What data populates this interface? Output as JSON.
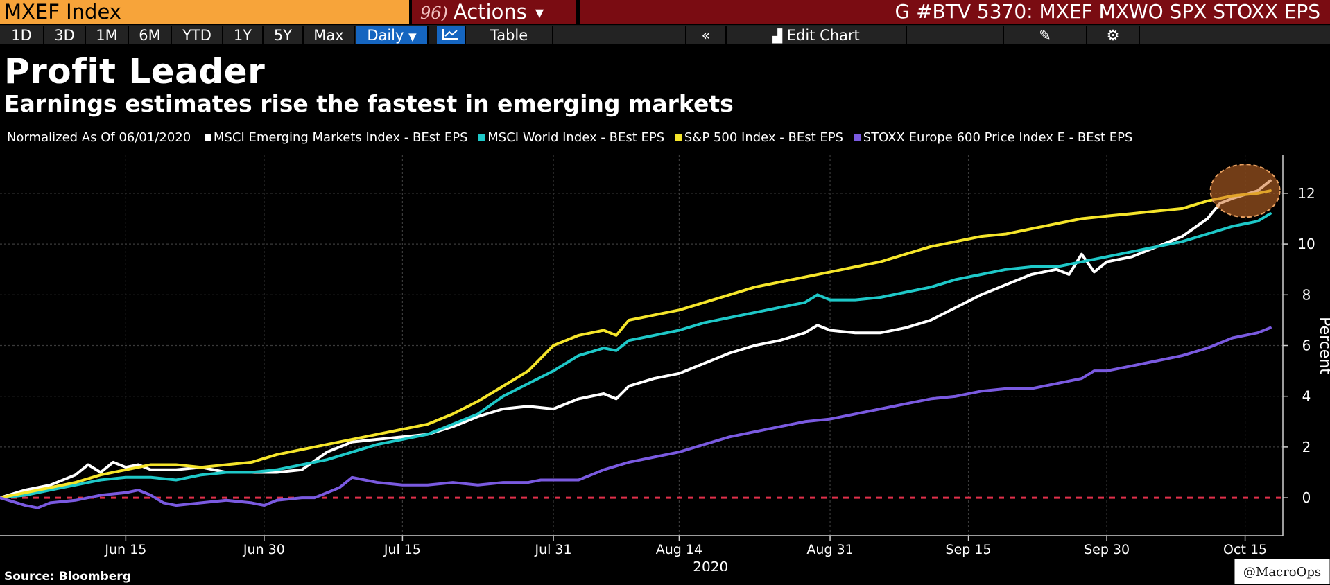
{
  "header": {
    "ticker": "MXEF Index",
    "actions_num": "96)",
    "actions_label": "Actions",
    "command": "G #BTV 5370: MXEF MXWO SPX STOXX EPS"
  },
  "toolbar": {
    "ranges": [
      "1D",
      "3D",
      "1M",
      "6M",
      "YTD",
      "1Y",
      "5Y",
      "Max"
    ],
    "frequency": "Daily",
    "table_label": "Table",
    "edit_chart_label": "Edit Chart"
  },
  "headline": {
    "title": "Profit Leader",
    "subtitle": "Earnings estimates rise the fastest in emerging markets"
  },
  "footer": {
    "source": "Source: Bloomberg",
    "watermark": "@MacroOps"
  },
  "colors": {
    "background": "#000000",
    "em": "#ffffff",
    "world": "#1ec8c8",
    "spx": "#f5e52a",
    "stoxx": "#7a5ae0",
    "zero_line": "#e0304a",
    "highlight": "#d0702a"
  },
  "chart_data": {
    "type": "line",
    "title": "Profit Leader",
    "subtitle": "Earnings estimates rise the fastest in emerging markets",
    "normalization_label": "Normalized As Of 06/01/2020",
    "ylabel": "Percent",
    "ylim": [
      -1.5,
      13.5
    ],
    "yticks": [
      0,
      2,
      4,
      6,
      8,
      10,
      12
    ],
    "xlabel": "2020",
    "x_ticks": [
      {
        "label": "Jun 15",
        "day": 10
      },
      {
        "label": "Jun 30",
        "day": 21
      },
      {
        "label": "Jul 15",
        "day": 32
      },
      {
        "label": "Jul 31",
        "day": 44
      },
      {
        "label": "Aug 14",
        "day": 54
      },
      {
        "label": "Aug 31",
        "day": 66
      },
      {
        "label": "Sep 15",
        "day": 77
      },
      {
        "label": "Sep 30",
        "day": 88
      },
      {
        "label": "Oct 15",
        "day": 99
      }
    ],
    "x_range": [
      0,
      102
    ],
    "legend_position": "top",
    "zero_line": true,
    "highlight_annotation": {
      "day": 99,
      "value": 12.1
    },
    "series": [
      {
        "name": "MSCI Emerging Markets Index - BEst EPS",
        "color": "#ffffff",
        "points": [
          [
            0,
            0
          ],
          [
            2,
            0.3
          ],
          [
            4,
            0.5
          ],
          [
            6,
            0.9
          ],
          [
            7,
            1.3
          ],
          [
            8,
            1.0
          ],
          [
            9,
            1.4
          ],
          [
            10,
            1.2
          ],
          [
            11,
            1.3
          ],
          [
            12,
            1.1
          ],
          [
            14,
            1.1
          ],
          [
            16,
            1.2
          ],
          [
            18,
            1.0
          ],
          [
            20,
            1.0
          ],
          [
            22,
            1.0
          ],
          [
            24,
            1.1
          ],
          [
            26,
            1.8
          ],
          [
            28,
            2.2
          ],
          [
            30,
            2.3
          ],
          [
            32,
            2.4
          ],
          [
            34,
            2.5
          ],
          [
            36,
            2.8
          ],
          [
            38,
            3.2
          ],
          [
            40,
            3.5
          ],
          [
            42,
            3.6
          ],
          [
            44,
            3.5
          ],
          [
            46,
            3.9
          ],
          [
            48,
            4.1
          ],
          [
            49,
            3.9
          ],
          [
            50,
            4.4
          ],
          [
            52,
            4.7
          ],
          [
            54,
            4.9
          ],
          [
            56,
            5.3
          ],
          [
            58,
            5.7
          ],
          [
            60,
            6.0
          ],
          [
            62,
            6.2
          ],
          [
            64,
            6.5
          ],
          [
            65,
            6.8
          ],
          [
            66,
            6.6
          ],
          [
            68,
            6.5
          ],
          [
            70,
            6.5
          ],
          [
            72,
            6.7
          ],
          [
            74,
            7.0
          ],
          [
            76,
            7.5
          ],
          [
            78,
            8.0
          ],
          [
            80,
            8.4
          ],
          [
            82,
            8.8
          ],
          [
            84,
            9.0
          ],
          [
            85,
            8.8
          ],
          [
            86,
            9.6
          ],
          [
            87,
            8.9
          ],
          [
            88,
            9.3
          ],
          [
            90,
            9.5
          ],
          [
            92,
            9.9
          ],
          [
            94,
            10.3
          ],
          [
            96,
            11.0
          ],
          [
            97,
            11.6
          ],
          [
            98,
            11.8
          ],
          [
            100,
            12.1
          ],
          [
            101,
            12.5
          ]
        ]
      },
      {
        "name": "MSCI World Index - BEst EPS",
        "color": "#1ec8c8",
        "points": [
          [
            0,
            0
          ],
          [
            2,
            0.1
          ],
          [
            4,
            0.3
          ],
          [
            6,
            0.5
          ],
          [
            8,
            0.7
          ],
          [
            10,
            0.8
          ],
          [
            12,
            0.8
          ],
          [
            14,
            0.7
          ],
          [
            16,
            0.9
          ],
          [
            18,
            1.0
          ],
          [
            20,
            1.0
          ],
          [
            22,
            1.1
          ],
          [
            24,
            1.3
          ],
          [
            26,
            1.5
          ],
          [
            28,
            1.8
          ],
          [
            30,
            2.1
          ],
          [
            32,
            2.3
          ],
          [
            34,
            2.5
          ],
          [
            36,
            2.9
          ],
          [
            38,
            3.3
          ],
          [
            40,
            4.0
          ],
          [
            42,
            4.5
          ],
          [
            44,
            5.0
          ],
          [
            46,
            5.6
          ],
          [
            48,
            5.9
          ],
          [
            49,
            5.8
          ],
          [
            50,
            6.2
          ],
          [
            52,
            6.4
          ],
          [
            54,
            6.6
          ],
          [
            56,
            6.9
          ],
          [
            58,
            7.1
          ],
          [
            60,
            7.3
          ],
          [
            62,
            7.5
          ],
          [
            64,
            7.7
          ],
          [
            65,
            8.0
          ],
          [
            66,
            7.8
          ],
          [
            68,
            7.8
          ],
          [
            70,
            7.9
          ],
          [
            72,
            8.1
          ],
          [
            74,
            8.3
          ],
          [
            76,
            8.6
          ],
          [
            78,
            8.8
          ],
          [
            80,
            9.0
          ],
          [
            82,
            9.1
          ],
          [
            84,
            9.1
          ],
          [
            86,
            9.3
          ],
          [
            88,
            9.5
          ],
          [
            90,
            9.7
          ],
          [
            92,
            9.9
          ],
          [
            94,
            10.1
          ],
          [
            96,
            10.4
          ],
          [
            98,
            10.7
          ],
          [
            100,
            10.9
          ],
          [
            101,
            11.2
          ]
        ]
      },
      {
        "name": "S&P 500 Index - BEst EPS",
        "color": "#f5e52a",
        "points": [
          [
            0,
            0
          ],
          [
            2,
            0.2
          ],
          [
            4,
            0.4
          ],
          [
            6,
            0.6
          ],
          [
            8,
            0.9
          ],
          [
            10,
            1.1
          ],
          [
            12,
            1.3
          ],
          [
            14,
            1.3
          ],
          [
            16,
            1.2
          ],
          [
            18,
            1.3
          ],
          [
            20,
            1.4
          ],
          [
            22,
            1.7
          ],
          [
            24,
            1.9
          ],
          [
            26,
            2.1
          ],
          [
            28,
            2.3
          ],
          [
            30,
            2.5
          ],
          [
            32,
            2.7
          ],
          [
            34,
            2.9
          ],
          [
            36,
            3.3
          ],
          [
            38,
            3.8
          ],
          [
            40,
            4.4
          ],
          [
            42,
            5.0
          ],
          [
            44,
            6.0
          ],
          [
            46,
            6.4
          ],
          [
            48,
            6.6
          ],
          [
            49,
            6.4
          ],
          [
            50,
            7.0
          ],
          [
            52,
            7.2
          ],
          [
            54,
            7.4
          ],
          [
            56,
            7.7
          ],
          [
            58,
            8.0
          ],
          [
            60,
            8.3
          ],
          [
            62,
            8.5
          ],
          [
            64,
            8.7
          ],
          [
            66,
            8.9
          ],
          [
            68,
            9.1
          ],
          [
            70,
            9.3
          ],
          [
            72,
            9.6
          ],
          [
            74,
            9.9
          ],
          [
            76,
            10.1
          ],
          [
            78,
            10.3
          ],
          [
            80,
            10.4
          ],
          [
            82,
            10.6
          ],
          [
            84,
            10.8
          ],
          [
            86,
            11.0
          ],
          [
            88,
            11.1
          ],
          [
            90,
            11.2
          ],
          [
            92,
            11.3
          ],
          [
            94,
            11.4
          ],
          [
            96,
            11.7
          ],
          [
            98,
            11.9
          ],
          [
            100,
            12.0
          ],
          [
            101,
            12.1
          ]
        ]
      },
      {
        "name": "STOXX Europe 600 Price Index E - BEst EPS",
        "color": "#7a5ae0",
        "points": [
          [
            0,
            0
          ],
          [
            2,
            -0.3
          ],
          [
            3,
            -0.4
          ],
          [
            4,
            -0.2
          ],
          [
            6,
            -0.1
          ],
          [
            8,
            0.1
          ],
          [
            10,
            0.2
          ],
          [
            11,
            0.3
          ],
          [
            12,
            0.1
          ],
          [
            13,
            -0.2
          ],
          [
            14,
            -0.3
          ],
          [
            16,
            -0.2
          ],
          [
            18,
            -0.1
          ],
          [
            20,
            -0.2
          ],
          [
            21,
            -0.3
          ],
          [
            22,
            -0.1
          ],
          [
            24,
            0.0
          ],
          [
            25,
            0.0
          ],
          [
            26,
            0.2
          ],
          [
            27,
            0.4
          ],
          [
            28,
            0.8
          ],
          [
            29,
            0.7
          ],
          [
            30,
            0.6
          ],
          [
            32,
            0.5
          ],
          [
            34,
            0.5
          ],
          [
            36,
            0.6
          ],
          [
            38,
            0.5
          ],
          [
            40,
            0.6
          ],
          [
            42,
            0.6
          ],
          [
            43,
            0.7
          ],
          [
            44,
            0.7
          ],
          [
            46,
            0.7
          ],
          [
            47,
            0.9
          ],
          [
            48,
            1.1
          ],
          [
            50,
            1.4
          ],
          [
            52,
            1.6
          ],
          [
            54,
            1.8
          ],
          [
            56,
            2.1
          ],
          [
            58,
            2.4
          ],
          [
            60,
            2.6
          ],
          [
            62,
            2.8
          ],
          [
            64,
            3.0
          ],
          [
            66,
            3.1
          ],
          [
            68,
            3.3
          ],
          [
            70,
            3.5
          ],
          [
            72,
            3.7
          ],
          [
            74,
            3.9
          ],
          [
            76,
            4.0
          ],
          [
            78,
            4.2
          ],
          [
            80,
            4.3
          ],
          [
            82,
            4.3
          ],
          [
            84,
            4.5
          ],
          [
            86,
            4.7
          ],
          [
            87,
            5.0
          ],
          [
            88,
            5.0
          ],
          [
            90,
            5.2
          ],
          [
            92,
            5.4
          ],
          [
            94,
            5.6
          ],
          [
            96,
            5.9
          ],
          [
            98,
            6.3
          ],
          [
            100,
            6.5
          ],
          [
            101,
            6.7
          ]
        ]
      }
    ]
  }
}
